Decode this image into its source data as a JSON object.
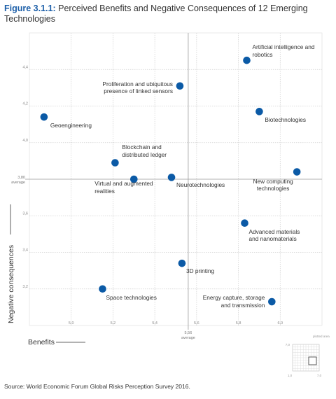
{
  "figure_label": "Figure 3.1.1:",
  "chart_data": {
    "type": "scatter",
    "title": "Perceived Benefits and Negative Consequences of 12 Emerging Technologies",
    "x_label": "Benefits",
    "y_label": "Negative consequences",
    "xlim": [
      4.8,
      6.2
    ],
    "ylim": [
      3.0,
      4.6
    ],
    "xticks": [
      {
        "value": 5.0,
        "label": "5,0"
      },
      {
        "value": 5.2,
        "label": "5,2"
      },
      {
        "value": 5.4,
        "label": "5,4"
      },
      {
        "value": 5.6,
        "label": "5,6"
      },
      {
        "value": 5.8,
        "label": "5,8"
      },
      {
        "value": 6.0,
        "label": "6,0"
      }
    ],
    "yticks": [
      {
        "value": 3.2,
        "label": "3,2"
      },
      {
        "value": 3.4,
        "label": "3,4"
      },
      {
        "value": 3.6,
        "label": "3,6"
      },
      {
        "value": 4.0,
        "label": "4,0"
      },
      {
        "value": 4.2,
        "label": "4,2"
      },
      {
        "value": 4.4,
        "label": "4,4"
      }
    ],
    "x_average": {
      "value": 5.56,
      "label": "5,56",
      "note": "average"
    },
    "y_average": {
      "value": 3.8,
      "label": "3,80",
      "note": "average"
    },
    "grid": true,
    "color": "#0b5aa6",
    "labels": [
      "Artificial intelligence and robotics",
      "Proliferation and ubiquitous presence of linked sensors",
      "Geoengineering",
      "Biotechnologies",
      "Blockchain and distributed ledger",
      "New computing technologies",
      "Virtual and augmented realities",
      "Neurotechnologies",
      "Advanced materials and nanomaterials",
      "3D printing",
      "Space technologies",
      "Energy capture, storage and transmission"
    ],
    "x": [
      5.84,
      5.52,
      4.87,
      5.9,
      5.21,
      6.08,
      5.3,
      5.48,
      5.83,
      5.53,
      5.15,
      5.96
    ],
    "y": [
      4.45,
      4.31,
      4.14,
      4.17,
      3.89,
      3.84,
      3.8,
      3.81,
      3.56,
      3.34,
      3.2,
      3.13
    ]
  },
  "inset": {
    "note": "plotted area",
    "y_top": "7,0",
    "origin": "1,0",
    "x_right": "7,0"
  },
  "source": "Source: World Economic Forum Global Risks Perception Survey 2016."
}
